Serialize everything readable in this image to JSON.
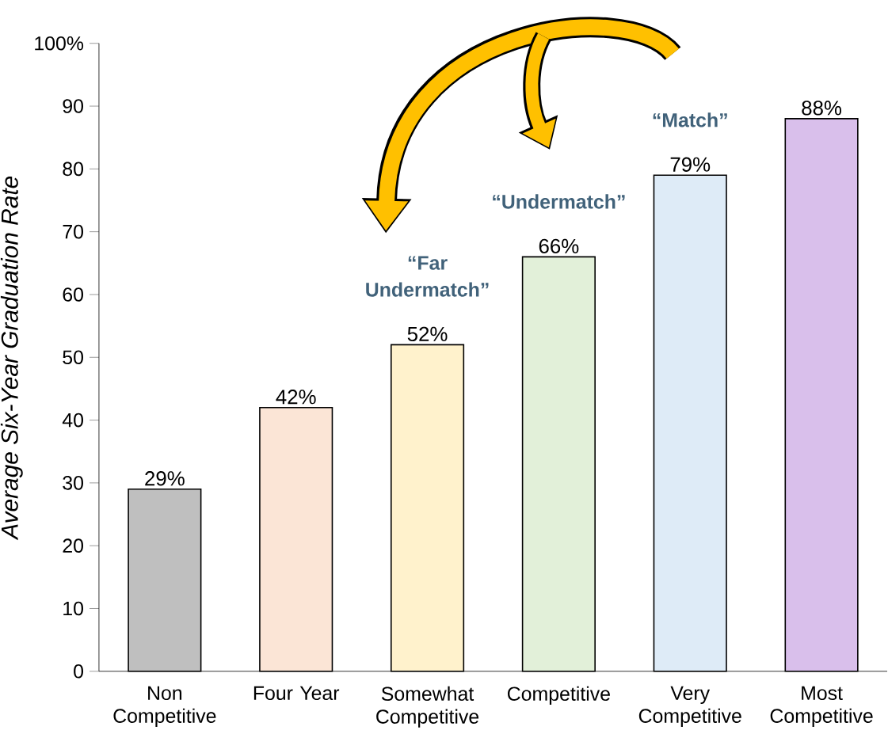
{
  "chart_data": {
    "type": "bar",
    "ylabel": "Average Six-Year Graduation Rate",
    "categories": [
      "Non Competitive",
      "Four Year",
      "Somewhat Competitive",
      "Competitive",
      "Very Competitive",
      "Most Competitive"
    ],
    "values": [
      29,
      42,
      52,
      66,
      79,
      88
    ],
    "value_labels": [
      "29%",
      "42%",
      "52%",
      "66%",
      "79%",
      "88%"
    ],
    "colors": [
      "#bfbfbf",
      "#fbe5d6",
      "#fff2cc",
      "#e2f0d9",
      "#deebf7",
      "#d9bfeb"
    ],
    "ylim": [
      0,
      100
    ],
    "yticks": [
      0,
      10,
      20,
      30,
      40,
      50,
      60,
      70,
      80,
      90,
      {
        "value": 100,
        "label": "100%"
      }
    ],
    "grid": false,
    "annotations": [
      "“Far Undermatch”",
      "“Undermatch”",
      "“Match”"
    ]
  }
}
